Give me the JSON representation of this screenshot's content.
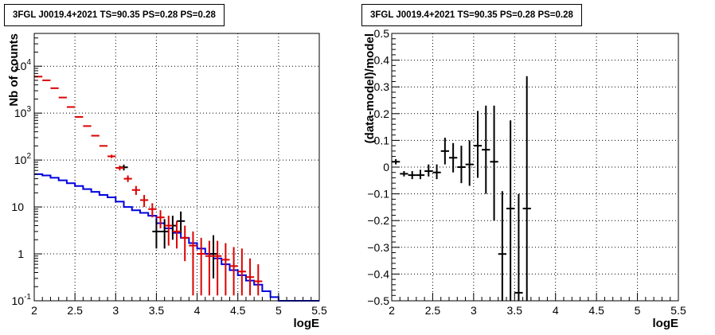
{
  "chart_data": [
    {
      "type": "line",
      "title": "3FGL J0019.4+2021 TS=90.35 PS=0.28 PS=0.28",
      "xlabel": "logE",
      "ylabel": "Nb of counts",
      "xlim": [
        2,
        5.5
      ],
      "ylim": [
        0.1,
        50000
      ],
      "yscale": "log",
      "grid": true,
      "x_ticks": [
        "2",
        "2.5",
        "3",
        "3.5",
        "4",
        "4.5",
        "5",
        "5.5"
      ],
      "y_ticks": [
        {
          "base": "10",
          "exp": "-1"
        },
        {
          "base": "1",
          "exp": ""
        },
        {
          "base": "10",
          "exp": ""
        },
        {
          "base": "10",
          "exp": "2"
        },
        {
          "base": "10",
          "exp": "3"
        },
        {
          "base": "10",
          "exp": "4"
        }
      ],
      "colors": {
        "data": "#000000",
        "model_total": "#dd0000",
        "model_source": "#0000dd"
      },
      "bin_width": 0.1,
      "data": [
        {
          "x": 3.1,
          "y": 70,
          "lo": 60,
          "hi": 80
        },
        {
          "x": 3.5,
          "y": 3,
          "lo": 1.3,
          "hi": 5.5
        },
        {
          "x": 3.6,
          "y": 3,
          "lo": 1.3,
          "hi": 5.5
        },
        {
          "x": 3.7,
          "y": 4,
          "lo": 2,
          "hi": 6.5
        },
        {
          "x": 3.8,
          "y": 5,
          "lo": 2.8,
          "hi": 8
        },
        {
          "x": 4.2,
          "y": 1,
          "lo": 0.3,
          "hi": 2.5
        }
      ],
      "model_total": [
        {
          "x": 2.05,
          "y": 6000,
          "lo": 6000,
          "hi": 6000
        },
        {
          "x": 2.15,
          "y": 5000,
          "lo": 5000,
          "hi": 5000
        },
        {
          "x": 2.25,
          "y": 3400,
          "lo": 3400,
          "hi": 3400
        },
        {
          "x": 2.35,
          "y": 2150,
          "lo": 2150,
          "hi": 2150
        },
        {
          "x": 2.45,
          "y": 1350,
          "lo": 1350,
          "hi": 1350
        },
        {
          "x": 2.55,
          "y": 830,
          "lo": 830,
          "hi": 830
        },
        {
          "x": 2.65,
          "y": 530,
          "lo": 530,
          "hi": 530
        },
        {
          "x": 2.75,
          "y": 330,
          "lo": 330,
          "hi": 330
        },
        {
          "x": 2.85,
          "y": 200,
          "lo": 200,
          "hi": 200
        },
        {
          "x": 2.95,
          "y": 120,
          "lo": 110,
          "hi": 130
        },
        {
          "x": 3.05,
          "y": 68,
          "lo": 60,
          "hi": 76
        },
        {
          "x": 3.15,
          "y": 40,
          "lo": 34,
          "hi": 47
        },
        {
          "x": 3.25,
          "y": 23,
          "lo": 18,
          "hi": 28
        },
        {
          "x": 3.35,
          "y": 14,
          "lo": 10,
          "hi": 18
        },
        {
          "x": 3.45,
          "y": 9,
          "lo": 6,
          "hi": 12
        },
        {
          "x": 3.55,
          "y": 6,
          "lo": 3.5,
          "hi": 8.5
        },
        {
          "x": 3.65,
          "y": 4,
          "lo": 1.5,
          "hi": 6.5
        },
        {
          "x": 3.75,
          "y": 3,
          "lo": 1.3,
          "hi": 5
        },
        {
          "x": 3.85,
          "y": 2.2,
          "lo": 0.7,
          "hi": 4
        },
        {
          "x": 3.95,
          "y": 1.5,
          "lo": 0.13,
          "hi": 3
        },
        {
          "x": 4.05,
          "y": 1,
          "lo": 0.13,
          "hi": 2.2
        },
        {
          "x": 4.15,
          "y": 0.9,
          "lo": 0.13,
          "hi": 1.9
        },
        {
          "x": 4.25,
          "y": 0.9,
          "lo": 0.13,
          "hi": 1.9
        },
        {
          "x": 4.35,
          "y": 0.75,
          "lo": 0.13,
          "hi": 1.7
        },
        {
          "x": 4.45,
          "y": 0.55,
          "lo": 0.13,
          "hi": 1.4
        },
        {
          "x": 4.55,
          "y": 0.42,
          "lo": 0.13,
          "hi": 1.3
        },
        {
          "x": 4.65,
          "y": 0.32,
          "lo": 0.13,
          "hi": 0.8
        },
        {
          "x": 4.75,
          "y": 0.26,
          "lo": 0.13,
          "hi": 0.6
        }
      ],
      "model_source": {
        "edges": [
          2.0,
          2.1,
          2.2,
          2.3,
          2.4,
          2.5,
          2.6,
          2.7,
          2.8,
          2.9,
          3.0,
          3.1,
          3.2,
          3.3,
          3.4,
          3.5,
          3.6,
          3.7,
          3.8,
          3.9,
          4.0,
          4.1,
          4.2,
          4.3,
          4.4,
          4.5,
          4.6,
          4.7,
          4.8,
          4.9,
          5.0,
          5.5
        ],
        "values": [
          50,
          47,
          42,
          37,
          32,
          28,
          24,
          21,
          18,
          16,
          13,
          10,
          8.5,
          7.5,
          6.5,
          4.5,
          3.5,
          2.8,
          2.2,
          1.7,
          1.3,
          1.0,
          0.8,
          0.6,
          0.45,
          0.35,
          0.27,
          0.22,
          0.16,
          0.12,
          0.1
        ]
      }
    },
    {
      "type": "scatter",
      "title": "3FGL J0019.4+2021 TS=90.35 PS=0.28 PS=0.28",
      "xlabel": "logE",
      "ylabel": "(data-model)/model",
      "xlim": [
        2,
        5.5
      ],
      "ylim": [
        -0.5,
        0.5
      ],
      "grid": true,
      "x_ticks": [
        "2",
        "2.5",
        "3",
        "3.5",
        "4",
        "4.5",
        "5",
        "5.5"
      ],
      "y_ticks": [
        "−0.5",
        "−0.4",
        "−0.3",
        "−0.2",
        "−0.1",
        "0",
        "0.1",
        "0.2",
        "0.3",
        "0.4",
        "0.5"
      ],
      "bin_width": 0.1,
      "points": [
        {
          "x": 2.05,
          "y": 0.02,
          "lo": 0.01,
          "hi": 0.03
        },
        {
          "x": 2.15,
          "y": -0.025,
          "lo": -0.035,
          "hi": -0.015
        },
        {
          "x": 2.25,
          "y": -0.03,
          "lo": -0.045,
          "hi": -0.015
        },
        {
          "x": 2.35,
          "y": -0.03,
          "lo": -0.045,
          "hi": -0.01
        },
        {
          "x": 2.45,
          "y": -0.015,
          "lo": -0.035,
          "hi": 0.01
        },
        {
          "x": 2.55,
          "y": -0.02,
          "lo": -0.045,
          "hi": 0.01
        },
        {
          "x": 2.65,
          "y": 0.06,
          "lo": 0.01,
          "hi": 0.11
        },
        {
          "x": 2.75,
          "y": 0.035,
          "lo": -0.02,
          "hi": 0.09
        },
        {
          "x": 2.85,
          "y": 0.0,
          "lo": -0.06,
          "hi": 0.08
        },
        {
          "x": 2.95,
          "y": 0.01,
          "lo": -0.07,
          "hi": 0.1
        },
        {
          "x": 3.05,
          "y": 0.08,
          "lo": -0.04,
          "hi": 0.21
        },
        {
          "x": 3.15,
          "y": 0.065,
          "lo": -0.1,
          "hi": 0.23
        },
        {
          "x": 3.25,
          "y": 0.02,
          "lo": -0.2,
          "hi": 0.23
        },
        {
          "x": 3.35,
          "y": -0.325,
          "lo": -0.5,
          "hi": -0.09
        },
        {
          "x": 3.45,
          "y": -0.155,
          "lo": -0.5,
          "hi": 0.175
        },
        {
          "x": 3.55,
          "y": -0.47,
          "lo": -0.5,
          "hi": -0.1
        },
        {
          "x": 3.65,
          "y": -0.155,
          "lo": -0.5,
          "hi": 0.34
        }
      ]
    }
  ]
}
